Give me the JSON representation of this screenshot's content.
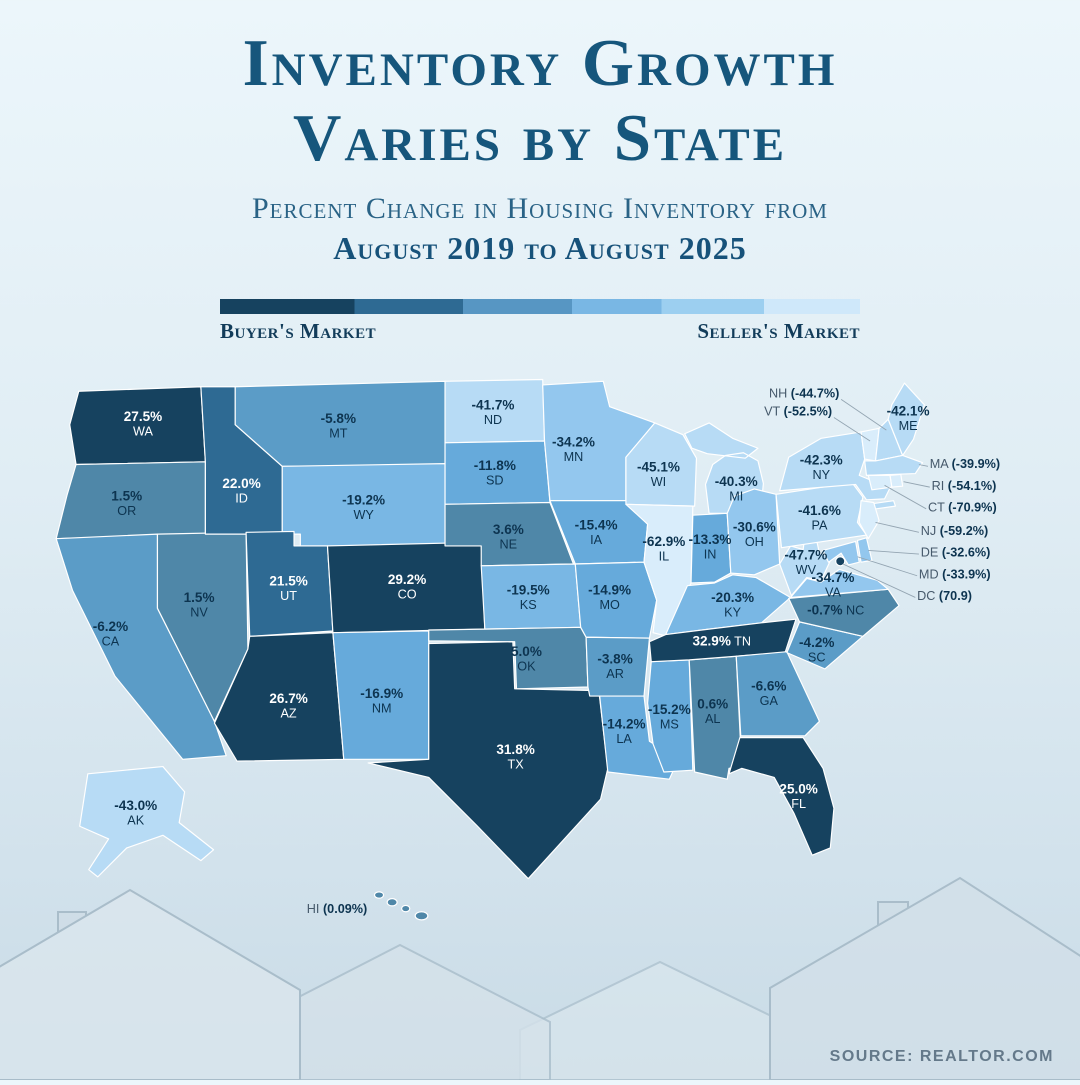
{
  "title": {
    "line1": "Inventory Growth",
    "line2": "Varies by State"
  },
  "subtitle": {
    "line1": "Percent Change in Housing Inventory from",
    "line2": "August 2019 to August 2025"
  },
  "legend": {
    "left": "Buyer's Market",
    "right": "Seller's Market"
  },
  "source": "SOURCE: REALTOR.COM",
  "palette": {
    "title_color": "#16567c",
    "text_dark": "#0d3450",
    "text_light": "#ffffff",
    "state_border": "#ffffff",
    "leader_line": "#94a5b2",
    "scale": [
      {
        "min": 24,
        "color": "#16425f"
      },
      {
        "min": 10,
        "color": "#2e6a93"
      },
      {
        "min": -1,
        "color": "#4f87a8"
      },
      {
        "min": -10,
        "color": "#5b9cc7"
      },
      {
        "min": -18,
        "color": "#66aadb"
      },
      {
        "min": -25,
        "color": "#79b7e4"
      },
      {
        "min": -37,
        "color": "#93c7ee"
      },
      {
        "min": -50,
        "color": "#b7dbf5"
      },
      {
        "min": -999,
        "color": "#d9edfb"
      }
    ],
    "legend_stops": [
      {
        "color": "#16425f",
        "to": 21
      },
      {
        "color": "#2e6a93",
        "to": 38
      },
      {
        "color": "#5796c3",
        "to": 55
      },
      {
        "color": "#79b7e4",
        "to": 69
      },
      {
        "color": "#9ccff0",
        "to": 85
      },
      {
        "color": "#cfe8fa",
        "to": 100
      }
    ]
  },
  "chart_data": {
    "type": "choropleth",
    "region": "United States",
    "metric": "Percent change in housing inventory, August 2019 to August 2025",
    "value_unit": "percent",
    "states": [
      {
        "abbr": "WA",
        "value": 27.5,
        "label": "27.5%"
      },
      {
        "abbr": "OR",
        "value": 1.5,
        "label": "1.5%"
      },
      {
        "abbr": "CA",
        "value": -6.2,
        "label": "-6.2%"
      },
      {
        "abbr": "NV",
        "value": 1.5,
        "label": "1.5%"
      },
      {
        "abbr": "ID",
        "value": 22.0,
        "label": "22.0%"
      },
      {
        "abbr": "MT",
        "value": -5.8,
        "label": "-5.8%"
      },
      {
        "abbr": "WY",
        "value": -19.2,
        "label": "-19.2%"
      },
      {
        "abbr": "UT",
        "value": 21.5,
        "label": "21.5%"
      },
      {
        "abbr": "CO",
        "value": 29.2,
        "label": "29.2%"
      },
      {
        "abbr": "AZ",
        "value": 26.7,
        "label": "26.7%"
      },
      {
        "abbr": "NM",
        "value": -16.9,
        "label": "-16.9%"
      },
      {
        "abbr": "ND",
        "value": -41.7,
        "label": "-41.7%"
      },
      {
        "abbr": "SD",
        "value": -11.8,
        "label": "-11.8%"
      },
      {
        "abbr": "NE",
        "value": 3.6,
        "label": "3.6%"
      },
      {
        "abbr": "KS",
        "value": -19.5,
        "label": "-19.5%"
      },
      {
        "abbr": "OK",
        "value": 5.0,
        "label": "5.0%"
      },
      {
        "abbr": "TX",
        "value": 31.8,
        "label": "31.8%"
      },
      {
        "abbr": "MN",
        "value": -34.2,
        "label": "-34.2%"
      },
      {
        "abbr": "IA",
        "value": -15.4,
        "label": "-15.4%"
      },
      {
        "abbr": "MO",
        "value": -14.9,
        "label": "-14.9%"
      },
      {
        "abbr": "AR",
        "value": -3.8,
        "label": "-3.8%"
      },
      {
        "abbr": "LA",
        "value": -14.2,
        "label": "-14.2%"
      },
      {
        "abbr": "WI",
        "value": -45.1,
        "label": "-45.1%"
      },
      {
        "abbr": "IL",
        "value": -62.9,
        "label": "-62.9%"
      },
      {
        "abbr": "MS",
        "value": -15.2,
        "label": "-15.2%"
      },
      {
        "abbr": "AL",
        "value": 0.6,
        "label": "0.6%"
      },
      {
        "abbr": "MI",
        "value": -40.3,
        "label": "-40.3%"
      },
      {
        "abbr": "IN",
        "value": -13.3,
        "label": "-13.3%"
      },
      {
        "abbr": "OH",
        "value": -30.6,
        "label": "-30.6%"
      },
      {
        "abbr": "KY",
        "value": -20.3,
        "label": "-20.3%"
      },
      {
        "abbr": "TN",
        "value": 32.9,
        "label": "32.9%"
      },
      {
        "abbr": "GA",
        "value": -6.6,
        "label": "-6.6%"
      },
      {
        "abbr": "FL",
        "value": 25.0,
        "label": "25.0%"
      },
      {
        "abbr": "SC",
        "value": -4.2,
        "label": "-4.2%"
      },
      {
        "abbr": "NC",
        "value": -0.7,
        "label": "-0.7%"
      },
      {
        "abbr": "VA",
        "value": -34.7,
        "label": "-34.7%"
      },
      {
        "abbr": "WV",
        "value": -47.7,
        "label": "-47.7%"
      },
      {
        "abbr": "PA",
        "value": -41.6,
        "label": "-41.6%"
      },
      {
        "abbr": "NY",
        "value": -42.3,
        "label": "-42.3%"
      },
      {
        "abbr": "NJ",
        "value": -59.2,
        "label": "-59.2%"
      },
      {
        "abbr": "DE",
        "value": -32.6,
        "label": "-32.6%"
      },
      {
        "abbr": "MD",
        "value": -33.9,
        "label": "-33.9%"
      },
      {
        "abbr": "DC",
        "value": 70.9,
        "label": "70.9"
      },
      {
        "abbr": "CT",
        "value": -70.9,
        "label": "-70.9%"
      },
      {
        "abbr": "RI",
        "value": -54.1,
        "label": "-54.1%"
      },
      {
        "abbr": "MA",
        "value": -39.9,
        "label": "-39.9%"
      },
      {
        "abbr": "VT",
        "value": -52.5,
        "label": "-52.5%"
      },
      {
        "abbr": "NH",
        "value": -44.7,
        "label": "-44.7%"
      },
      {
        "abbr": "ME",
        "value": -42.1,
        "label": "-42.1%"
      },
      {
        "abbr": "AK",
        "value": -43.0,
        "label": "-43.0%"
      },
      {
        "abbr": "HI",
        "value": 0.09,
        "label": "0.09%"
      }
    ]
  }
}
